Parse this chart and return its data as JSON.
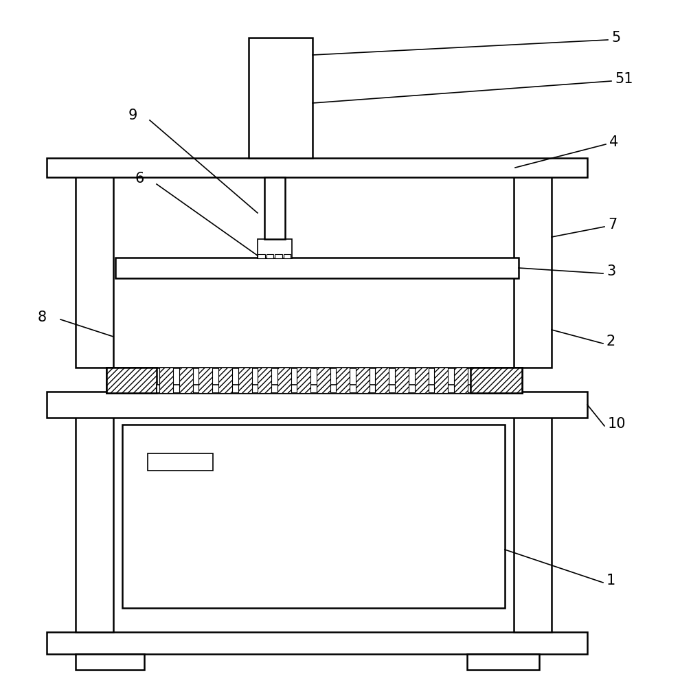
{
  "bg_color": "#ffffff",
  "line_color": "#000000",
  "fig_width": 9.9,
  "fig_height": 10.0,
  "dpi": 100,
  "lw": 1.8,
  "label_lw": 1.2,
  "fs": 15
}
